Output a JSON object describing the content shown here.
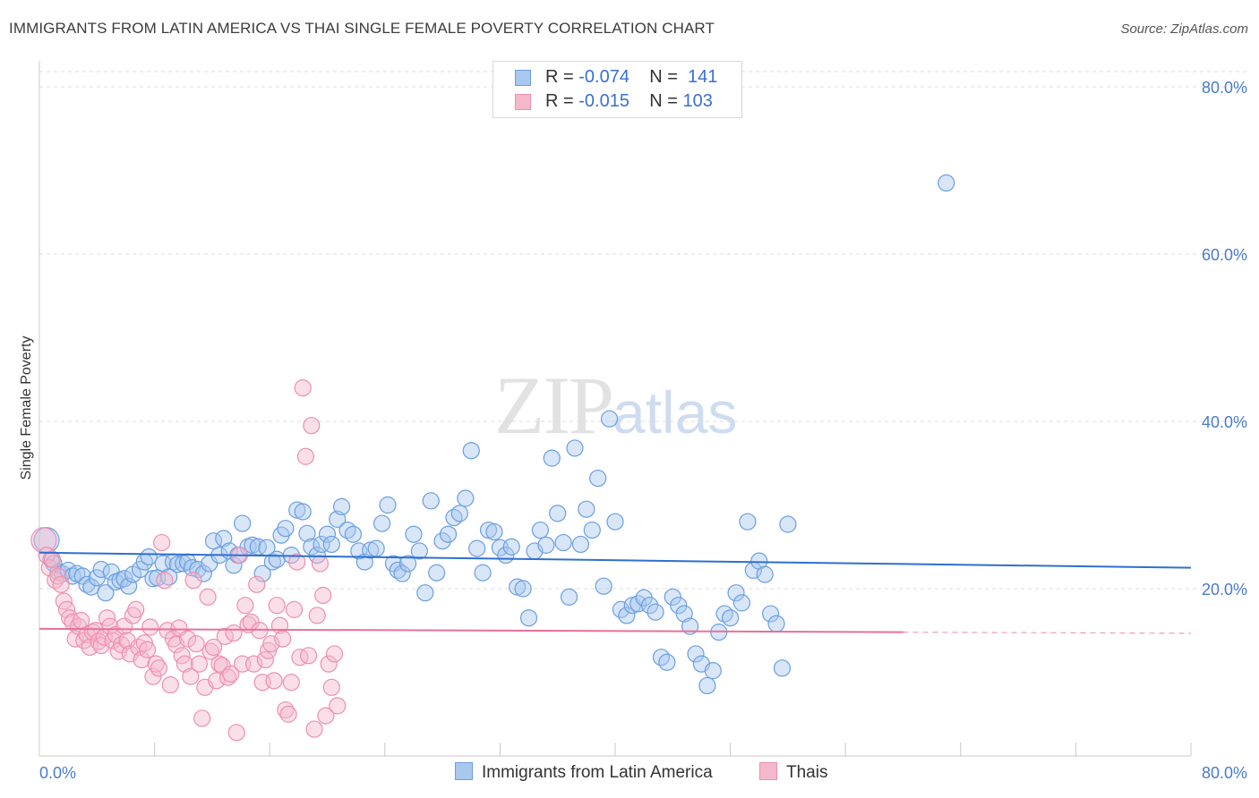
{
  "header": {
    "title": "IMMIGRANTS FROM LATIN AMERICA VS THAI SINGLE FEMALE POVERTY CORRELATION CHART",
    "source": "Source: ZipAtlas.com"
  },
  "watermark": {
    "zip": "ZIP",
    "atlas": "atlas"
  },
  "legend": {
    "rows": [
      {
        "r_label": "R =",
        "r_value": "-0.074",
        "n_label": "N =",
        "n_value": "141",
        "color": "#a9c8f0"
      },
      {
        "r_label": "R =",
        "r_value": "-0.015",
        "n_label": "N =",
        "n_value": "103",
        "color": "#f5b8cb"
      }
    ]
  },
  "bottom_legend": {
    "series1": "Immigrants from Latin America",
    "series2": "Thais"
  },
  "chart_data": {
    "type": "scatter",
    "title": "IMMIGRANTS FROM LATIN AMERICA VS THAI SINGLE FEMALE POVERTY CORRELATION CHART",
    "xlabel": "",
    "ylabel": "Single Female Poverty",
    "xlim": [
      0,
      80
    ],
    "ylim": [
      0,
      80
    ],
    "x_tick_labels": [
      "0.0%",
      "80.0%"
    ],
    "y_tick_labels": [
      "20.0%",
      "40.0%",
      "60.0%",
      "80.0%"
    ],
    "y_ticks": [
      20,
      40,
      60,
      80
    ],
    "grid": "horizontal dashed",
    "legend_placement": "top-center",
    "series": [
      {
        "name": "Immigrants from Latin America",
        "color": "#6a9fe0",
        "fill": "#a9c8f0",
        "trend": {
          "x": [
            0,
            80
          ],
          "y": [
            24.3,
            22.5
          ],
          "color": "#2f6fcf"
        },
        "points": [
          [
            0.5,
            25.8
          ],
          [
            0.8,
            23.5
          ],
          [
            1.0,
            23.0
          ],
          [
            1.3,
            22.0
          ],
          [
            1.6,
            21.8
          ],
          [
            2.0,
            22.2
          ],
          [
            2.3,
            21.5
          ],
          [
            2.6,
            21.8
          ],
          [
            3.0,
            21.5
          ],
          [
            3.3,
            20.5
          ],
          [
            3.6,
            20.2
          ],
          [
            4.0,
            21.3
          ],
          [
            4.3,
            22.3
          ],
          [
            4.6,
            19.5
          ],
          [
            5.0,
            22.0
          ],
          [
            5.3,
            20.8
          ],
          [
            5.6,
            21.0
          ],
          [
            5.9,
            21.2
          ],
          [
            6.2,
            20.3
          ],
          [
            6.5,
            21.7
          ],
          [
            7.0,
            22.3
          ],
          [
            7.3,
            23.2
          ],
          [
            7.6,
            23.8
          ],
          [
            7.9,
            21.2
          ],
          [
            8.2,
            21.3
          ],
          [
            8.6,
            23.0
          ],
          [
            9.0,
            21.4
          ],
          [
            9.3,
            23.2
          ],
          [
            9.6,
            22.9
          ],
          [
            10.0,
            23.0
          ],
          [
            10.3,
            23.2
          ],
          [
            10.6,
            22.5
          ],
          [
            11.0,
            22.3
          ],
          [
            11.4,
            21.8
          ],
          [
            11.8,
            23.0
          ],
          [
            12.1,
            25.7
          ],
          [
            12.5,
            24.0
          ],
          [
            12.8,
            26.0
          ],
          [
            13.2,
            24.5
          ],
          [
            13.5,
            22.8
          ],
          [
            13.8,
            24.0
          ],
          [
            14.1,
            27.8
          ],
          [
            14.5,
            25.0
          ],
          [
            14.8,
            25.2
          ],
          [
            15.2,
            25.0
          ],
          [
            15.5,
            21.8
          ],
          [
            15.8,
            24.9
          ],
          [
            16.2,
            23.2
          ],
          [
            16.5,
            23.5
          ],
          [
            16.8,
            26.4
          ],
          [
            17.1,
            27.2
          ],
          [
            17.5,
            24.0
          ],
          [
            17.9,
            29.4
          ],
          [
            18.3,
            29.2
          ],
          [
            18.6,
            26.6
          ],
          [
            18.9,
            25.0
          ],
          [
            19.3,
            24.0
          ],
          [
            19.6,
            25.3
          ],
          [
            20.0,
            26.5
          ],
          [
            20.3,
            25.3
          ],
          [
            20.7,
            28.3
          ],
          [
            21.0,
            29.8
          ],
          [
            21.4,
            27.0
          ],
          [
            21.8,
            26.5
          ],
          [
            22.2,
            24.5
          ],
          [
            22.6,
            23.2
          ],
          [
            23.0,
            24.6
          ],
          [
            23.4,
            24.8
          ],
          [
            23.8,
            27.8
          ],
          [
            24.2,
            30.0
          ],
          [
            24.6,
            23.0
          ],
          [
            24.9,
            22.2
          ],
          [
            25.2,
            21.8
          ],
          [
            25.6,
            23.0
          ],
          [
            26.0,
            26.5
          ],
          [
            26.4,
            24.5
          ],
          [
            26.8,
            19.5
          ],
          [
            27.2,
            30.5
          ],
          [
            27.6,
            21.9
          ],
          [
            28.0,
            25.7
          ],
          [
            28.4,
            26.5
          ],
          [
            28.8,
            28.5
          ],
          [
            29.2,
            29.0
          ],
          [
            29.6,
            30.8
          ],
          [
            30.0,
            36.5
          ],
          [
            30.4,
            24.8
          ],
          [
            30.8,
            21.9
          ],
          [
            31.2,
            27.0
          ],
          [
            31.6,
            26.8
          ],
          [
            32.0,
            24.9
          ],
          [
            32.4,
            24.0
          ],
          [
            32.8,
            25.0
          ],
          [
            33.2,
            20.2
          ],
          [
            33.6,
            20.0
          ],
          [
            34.0,
            16.5
          ],
          [
            34.4,
            24.5
          ],
          [
            34.8,
            27.0
          ],
          [
            35.2,
            25.2
          ],
          [
            35.6,
            35.6
          ],
          [
            36.0,
            29.0
          ],
          [
            36.4,
            25.5
          ],
          [
            36.8,
            19.0
          ],
          [
            37.2,
            36.8
          ],
          [
            37.6,
            25.3
          ],
          [
            38.0,
            29.5
          ],
          [
            38.4,
            27.0
          ],
          [
            38.8,
            33.2
          ],
          [
            39.2,
            20.3
          ],
          [
            39.6,
            40.3
          ],
          [
            40.0,
            28.0
          ],
          [
            40.4,
            17.5
          ],
          [
            40.8,
            16.8
          ],
          [
            41.2,
            18.0
          ],
          [
            41.6,
            18.2
          ],
          [
            42.0,
            18.9
          ],
          [
            42.4,
            18.0
          ],
          [
            42.8,
            17.2
          ],
          [
            43.2,
            11.8
          ],
          [
            43.6,
            11.2
          ],
          [
            44.0,
            19.0
          ],
          [
            44.4,
            18.0
          ],
          [
            44.8,
            17.0
          ],
          [
            45.2,
            15.5
          ],
          [
            45.6,
            12.2
          ],
          [
            46.0,
            11.0
          ],
          [
            46.4,
            8.4
          ],
          [
            46.8,
            10.2
          ],
          [
            47.2,
            14.8
          ],
          [
            47.6,
            17.0
          ],
          [
            48.0,
            16.5
          ],
          [
            48.4,
            19.5
          ],
          [
            48.8,
            18.3
          ],
          [
            49.2,
            28.0
          ],
          [
            49.6,
            22.2
          ],
          [
            50.0,
            23.3
          ],
          [
            50.4,
            21.7
          ],
          [
            50.8,
            17.0
          ],
          [
            51.2,
            15.8
          ],
          [
            51.6,
            10.5
          ],
          [
            52.0,
            27.7
          ],
          [
            63.0,
            68.5
          ]
        ]
      },
      {
        "name": "Thais",
        "color": "#ee8fae",
        "fill": "#f5b8cb",
        "trend": {
          "x": [
            0,
            60
          ],
          "y": [
            15.2,
            14.8
          ],
          "color": "#e8709a",
          "dashed_to": 80
        },
        "points": [
          [
            0.3,
            25.8
          ],
          [
            0.5,
            24.0
          ],
          [
            0.7,
            22.5
          ],
          [
            0.9,
            23.5
          ],
          [
            1.1,
            21.0
          ],
          [
            1.3,
            21.5
          ],
          [
            1.5,
            20.5
          ],
          [
            1.7,
            18.5
          ],
          [
            1.9,
            17.5
          ],
          [
            2.1,
            16.5
          ],
          [
            2.3,
            16.0
          ],
          [
            2.5,
            14.0
          ],
          [
            2.7,
            15.5
          ],
          [
            2.9,
            16.2
          ],
          [
            3.1,
            13.8
          ],
          [
            3.3,
            14.5
          ],
          [
            3.5,
            13.0
          ],
          [
            3.7,
            14.8
          ],
          [
            3.9,
            15.0
          ],
          [
            4.1,
            13.7
          ],
          [
            4.3,
            13.2
          ],
          [
            4.5,
            14.2
          ],
          [
            4.7,
            16.5
          ],
          [
            4.9,
            15.5
          ],
          [
            5.1,
            13.8
          ],
          [
            5.3,
            14.5
          ],
          [
            5.5,
            12.5
          ],
          [
            5.7,
            13.3
          ],
          [
            5.9,
            15.5
          ],
          [
            6.1,
            13.8
          ],
          [
            6.3,
            12.2
          ],
          [
            6.5,
            16.8
          ],
          [
            6.7,
            17.5
          ],
          [
            6.9,
            13.0
          ],
          [
            7.1,
            11.5
          ],
          [
            7.3,
            13.5
          ],
          [
            7.5,
            12.7
          ],
          [
            7.7,
            15.4
          ],
          [
            7.9,
            9.5
          ],
          [
            8.1,
            11.0
          ],
          [
            8.3,
            10.5
          ],
          [
            8.5,
            25.5
          ],
          [
            8.7,
            21.0
          ],
          [
            8.9,
            15.0
          ],
          [
            9.1,
            8.5
          ],
          [
            9.3,
            14.0
          ],
          [
            9.5,
            13.3
          ],
          [
            9.7,
            15.3
          ],
          [
            9.9,
            12.0
          ],
          [
            10.1,
            11.0
          ],
          [
            10.3,
            14.0
          ],
          [
            10.5,
            9.5
          ],
          [
            10.7,
            21.0
          ],
          [
            10.9,
            13.4
          ],
          [
            11.1,
            11.0
          ],
          [
            11.3,
            4.5
          ],
          [
            11.5,
            8.2
          ],
          [
            11.7,
            19.0
          ],
          [
            11.9,
            12.5
          ],
          [
            12.1,
            13.0
          ],
          [
            12.3,
            9.0
          ],
          [
            12.5,
            11.0
          ],
          [
            12.7,
            10.8
          ],
          [
            12.9,
            14.3
          ],
          [
            13.1,
            9.4
          ],
          [
            13.3,
            9.8
          ],
          [
            13.5,
            14.7
          ],
          [
            13.7,
            2.8
          ],
          [
            13.9,
            24.0
          ],
          [
            14.1,
            11.0
          ],
          [
            14.3,
            18.0
          ],
          [
            14.5,
            15.7
          ],
          [
            14.7,
            16.0
          ],
          [
            14.9,
            11.0
          ],
          [
            15.1,
            20.5
          ],
          [
            15.3,
            15.0
          ],
          [
            15.5,
            8.8
          ],
          [
            15.7,
            11.5
          ],
          [
            15.9,
            12.6
          ],
          [
            16.1,
            13.4
          ],
          [
            16.3,
            9.0
          ],
          [
            16.5,
            18.0
          ],
          [
            16.7,
            15.6
          ],
          [
            16.9,
            14.0
          ],
          [
            17.1,
            5.5
          ],
          [
            17.3,
            5.0
          ],
          [
            17.5,
            8.8
          ],
          [
            17.7,
            17.5
          ],
          [
            17.9,
            23.2
          ],
          [
            18.1,
            11.8
          ],
          [
            18.3,
            44.0
          ],
          [
            18.5,
            35.8
          ],
          [
            18.7,
            12.0
          ],
          [
            18.9,
            39.5
          ],
          [
            19.1,
            3.2
          ],
          [
            19.3,
            16.8
          ],
          [
            19.5,
            23.0
          ],
          [
            19.7,
            19.2
          ],
          [
            19.9,
            4.8
          ],
          [
            20.1,
            11.0
          ],
          [
            20.3,
            8.2
          ],
          [
            20.5,
            12.2
          ],
          [
            20.7,
            6.0
          ]
        ]
      }
    ]
  }
}
